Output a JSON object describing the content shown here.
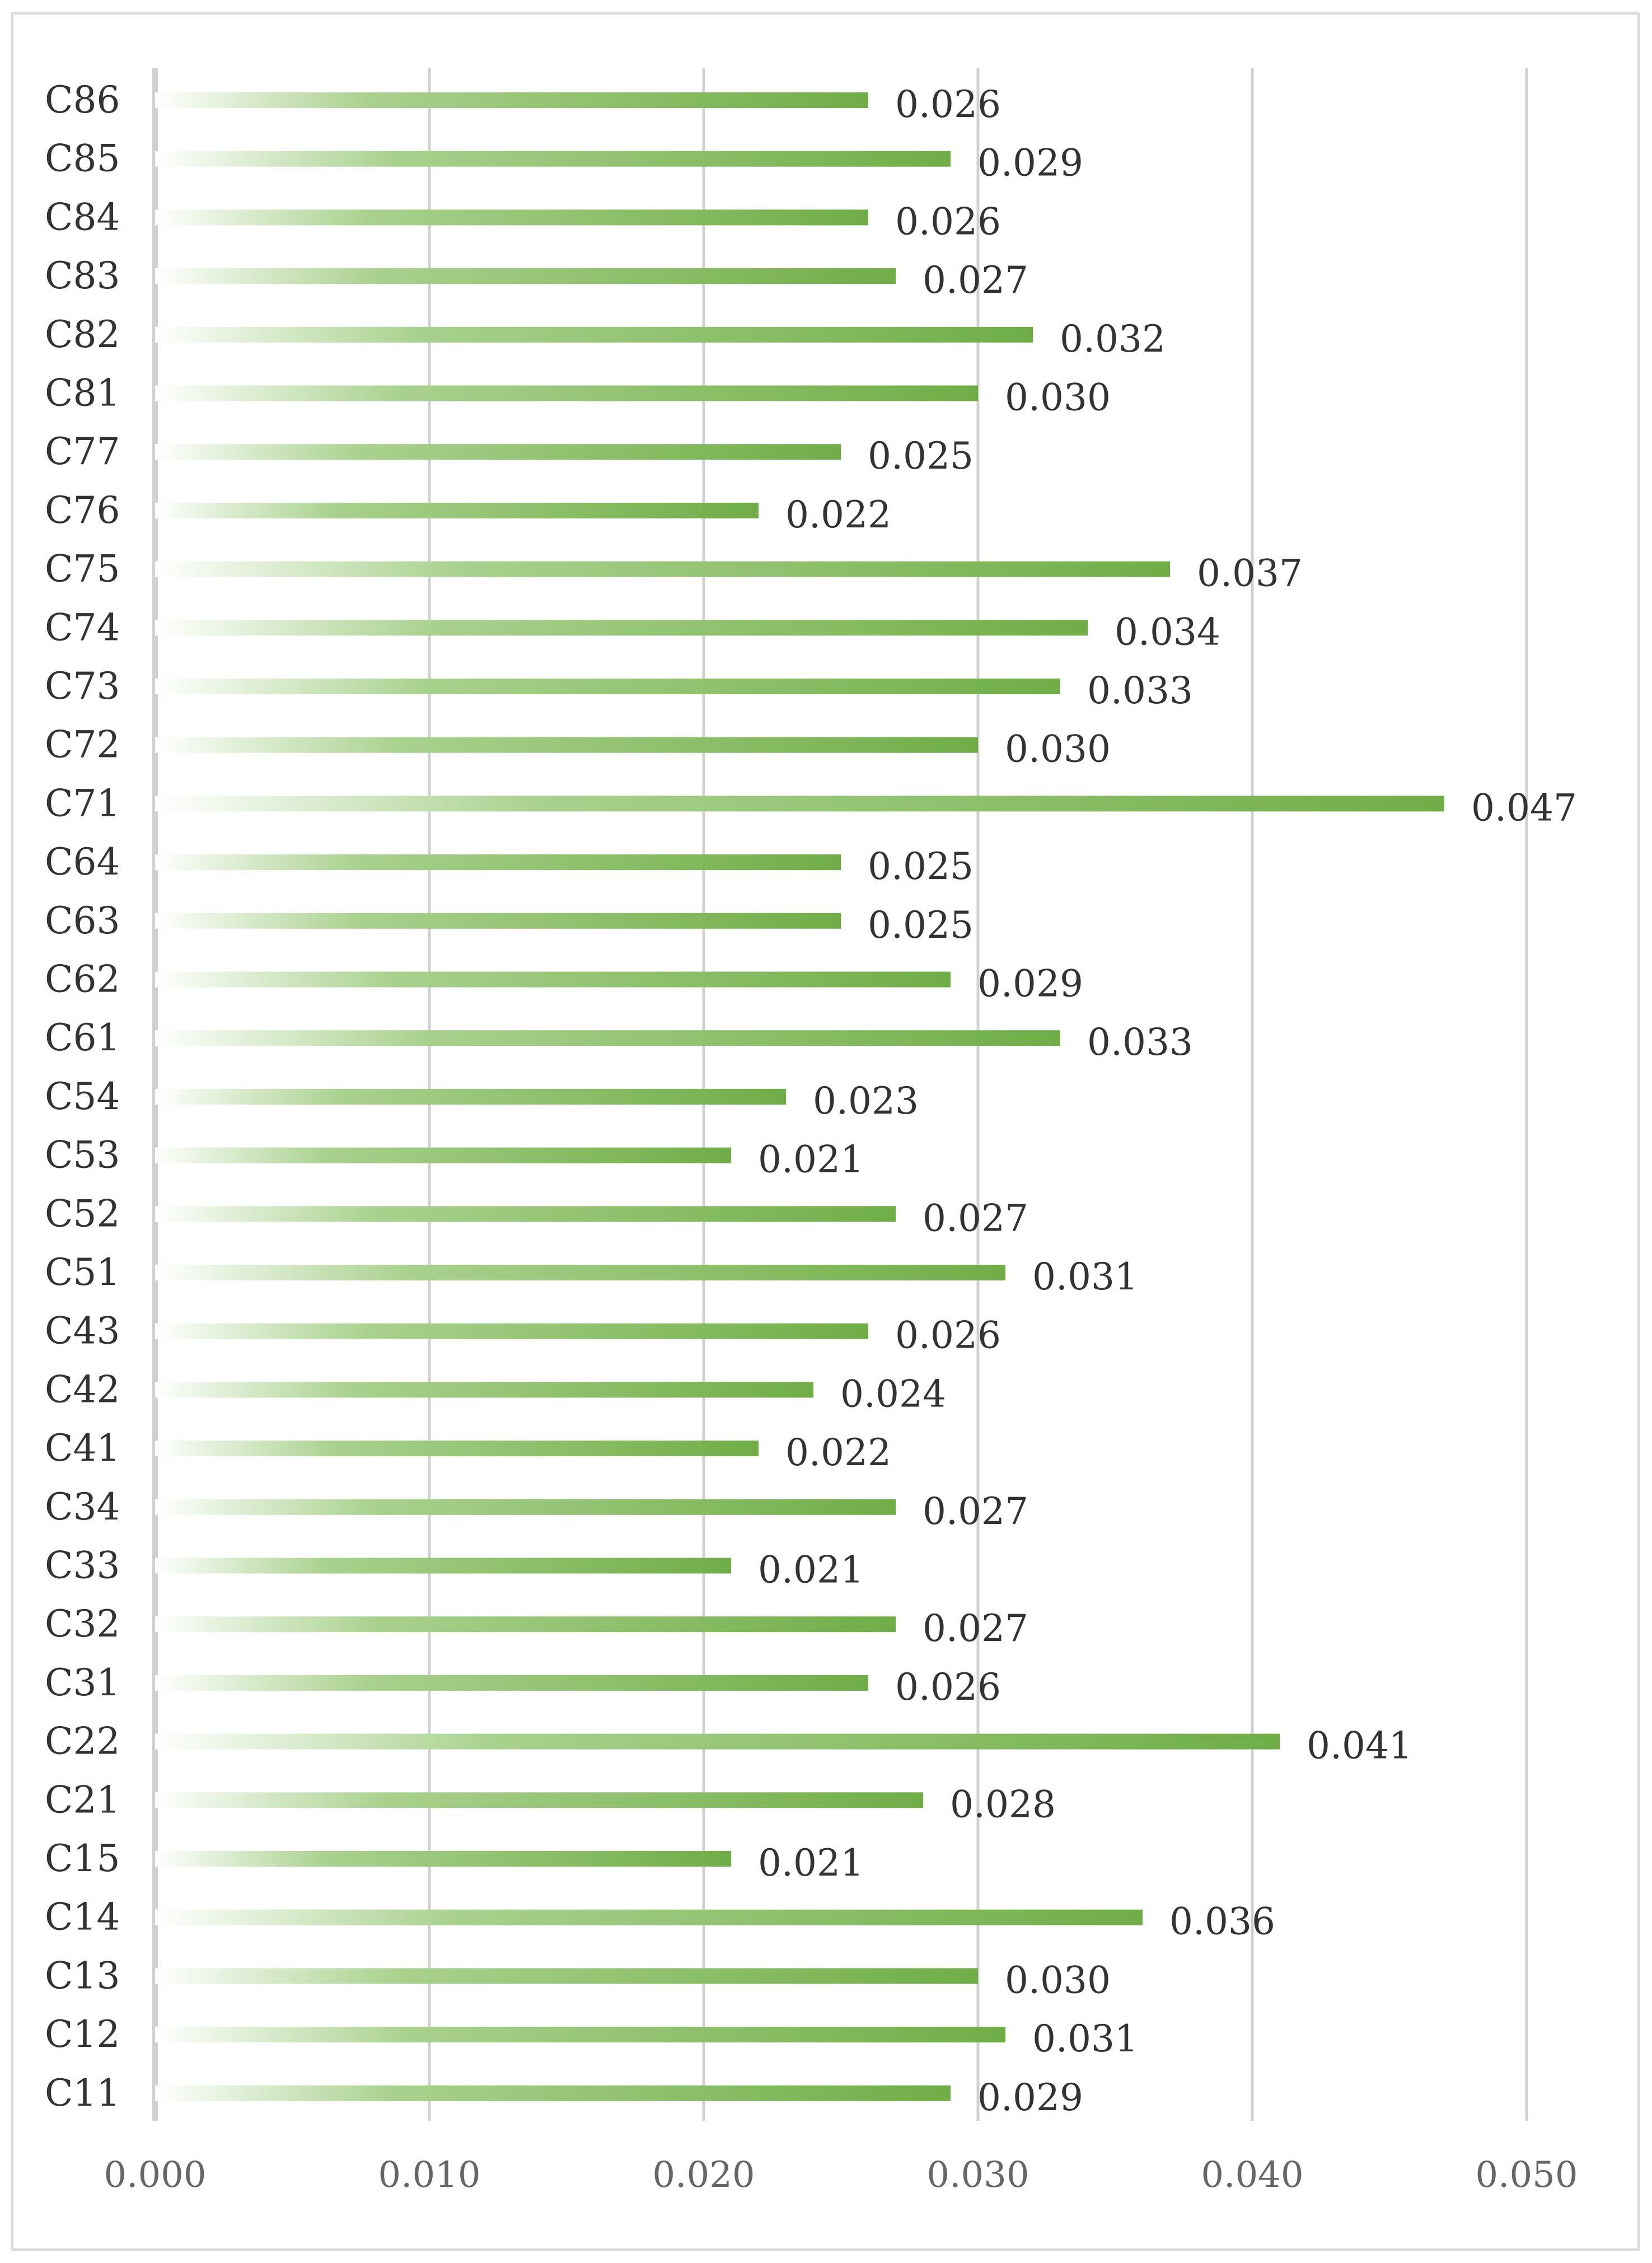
{
  "chart_data": {
    "type": "bar",
    "orientation": "horizontal",
    "title": "",
    "xlabel": "",
    "ylabel": "",
    "categories": [
      "C86",
      "C85",
      "C84",
      "C83",
      "C82",
      "C81",
      "C77",
      "C76",
      "C75",
      "C74",
      "C73",
      "C72",
      "C71",
      "C64",
      "C63",
      "C62",
      "C61",
      "C54",
      "C53",
      "C52",
      "C51",
      "C43",
      "C42",
      "C41",
      "C34",
      "C33",
      "C32",
      "C31",
      "C22",
      "C21",
      "C15",
      "C14",
      "C13",
      "C12",
      "C11"
    ],
    "values": [
      0.026,
      0.029,
      0.026,
      0.027,
      0.032,
      0.03,
      0.025,
      0.022,
      0.037,
      0.034,
      0.033,
      0.03,
      0.047,
      0.025,
      0.025,
      0.029,
      0.033,
      0.023,
      0.021,
      0.027,
      0.031,
      0.026,
      0.024,
      0.022,
      0.027,
      0.021,
      0.027,
      0.026,
      0.041,
      0.028,
      0.021,
      0.036,
      0.03,
      0.031,
      0.029
    ],
    "value_labels": [
      "0.026",
      "0.029",
      "0.026",
      "0.027",
      "0.032",
      "0.030",
      "0.025",
      "0.022",
      "0.037",
      "0.034",
      "0.033",
      "0.030",
      "0.047",
      "0.025",
      "0.025",
      "0.029",
      "0.033",
      "0.023",
      "0.021",
      "0.027",
      "0.031",
      "0.026",
      "0.024",
      "0.022",
      "0.027",
      "0.021",
      "0.027",
      "0.026",
      "0.041",
      "0.028",
      "0.021",
      "0.036",
      "0.030",
      "0.031",
      "0.029"
    ],
    "xlim": [
      0,
      0.05
    ],
    "xticks": [
      0,
      0.01,
      0.02,
      0.03,
      0.04,
      0.05
    ],
    "xtick_labels": [
      "0.000",
      "0.010",
      "0.020",
      "0.030",
      "0.040",
      "0.050"
    ],
    "grid": "vertical",
    "legend": "none",
    "bar_color": "#70ad47",
    "bar_fill": "gradient from white to green"
  }
}
